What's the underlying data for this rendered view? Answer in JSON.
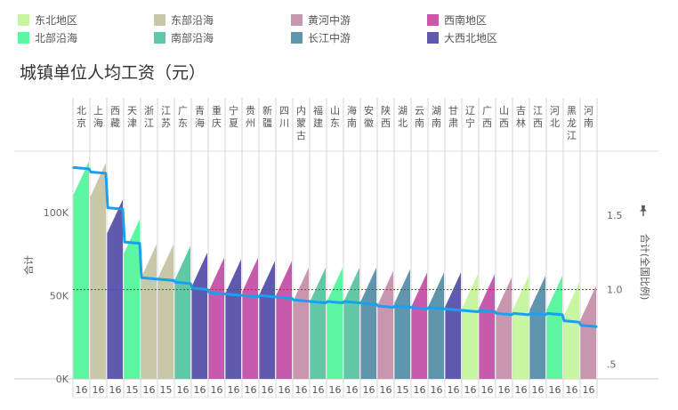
{
  "title": "城镇单位人均工资（元）",
  "legend": [
    {
      "name": "东北地区",
      "color": "#c8f5a0"
    },
    {
      "name": "北部沿海",
      "color": "#5cf5a0"
    },
    {
      "name": "东部沿海",
      "color": "#c8c8a8"
    },
    {
      "name": "南部沿海",
      "color": "#60c8a8"
    },
    {
      "name": "黄河中游",
      "color": "#c896ae"
    },
    {
      "name": "长江中游",
      "color": "#5f96ae"
    },
    {
      "name": "西南地区",
      "color": "#c85aae"
    },
    {
      "name": "大西北地区",
      "color": "#5f5aae"
    }
  ],
  "chart_data": {
    "type": "bar",
    "categories": [
      "北京",
      "上海",
      "西藏",
      "天津",
      "浙江",
      "江苏",
      "广东",
      "青海",
      "重庆",
      "宁夏",
      "贵州",
      "新疆",
      "四川",
      "内蒙古",
      "福建",
      "山东",
      "海南",
      "安徽",
      "陕西",
      "湖北",
      "云南",
      "湖南",
      "甘肃",
      "辽宁",
      "广西",
      "山西",
      "吉林",
      "江西",
      "河北",
      "黑龙江",
      "河南"
    ],
    "years": [
      "16",
      "16",
      "16",
      "15",
      "16",
      "15",
      "16",
      "16",
      "16",
      "16",
      "16",
      "16",
      "16",
      "16",
      "16",
      "16",
      "16",
      "16",
      "16",
      "15",
      "16",
      "16",
      "16",
      "16",
      "16",
      "16",
      "16",
      "16",
      "16",
      "16",
      "16"
    ],
    "regions": [
      "北部沿海",
      "东部沿海",
      "大西北地区",
      "北部沿海",
      "东部沿海",
      "东部沿海",
      "南部沿海",
      "大西北地区",
      "西南地区",
      "大西北地区",
      "西南地区",
      "大西北地区",
      "西南地区",
      "黄河中游",
      "南部沿海",
      "北部沿海",
      "南部沿海",
      "长江中游",
      "黄河中游",
      "长江中游",
      "西南地区",
      "长江中游",
      "大西北地区",
      "东北地区",
      "西南地区",
      "黄河中游",
      "东北地区",
      "长江中游",
      "北部沿海",
      "东北地区",
      "黄河中游"
    ],
    "values": [
      131000,
      130000,
      108000,
      96000,
      81000,
      81000,
      80000,
      76000,
      73000,
      72000,
      73000,
      71000,
      71000,
      67000,
      67000,
      67000,
      67000,
      67000,
      65000,
      66000,
      64000,
      64000,
      64000,
      63000,
      63000,
      61000,
      62000,
      62000,
      62000,
      58000,
      56000
    ],
    "series": [
      {
        "name": "合计",
        "axis": "left",
        "values": [
          131000,
          130000,
          108000,
          96000,
          81000,
          81000,
          80000,
          76000,
          73000,
          72000,
          73000,
          71000,
          71000,
          67000,
          67000,
          67000,
          67000,
          67000,
          65000,
          66000,
          64000,
          64000,
          64000,
          63000,
          63000,
          61000,
          62000,
          62000,
          62000,
          58000,
          56000
        ]
      },
      {
        "name": "合计(全国比例)",
        "axis": "right",
        "values": [
          1.82,
          1.79,
          1.55,
          1.32,
          1.08,
          1.07,
          1.05,
          1.01,
          0.98,
          0.97,
          0.96,
          0.96,
          0.95,
          0.93,
          0.92,
          0.92,
          0.92,
          0.91,
          0.89,
          0.89,
          0.88,
          0.88,
          0.87,
          0.86,
          0.86,
          0.84,
          0.84,
          0.84,
          0.84,
          0.79,
          0.76
        ]
      }
    ],
    "reference_line": {
      "axis": "right",
      "value": 1.0
    },
    "ylabel_left": "合计",
    "ylabel_right": "合计(全国比例)",
    "yticks_left": [
      "0K",
      "50K",
      "100K"
    ],
    "yticks_left_values": [
      0,
      50000,
      100000
    ],
    "yticks_right": [
      ".5",
      "1.0",
      "1.5"
    ],
    "yticks_right_values": [
      0.5,
      1.0,
      1.5
    ],
    "ylim_left": [
      0,
      137000
    ],
    "ylim_right": [
      0.4,
      1.93
    ]
  }
}
